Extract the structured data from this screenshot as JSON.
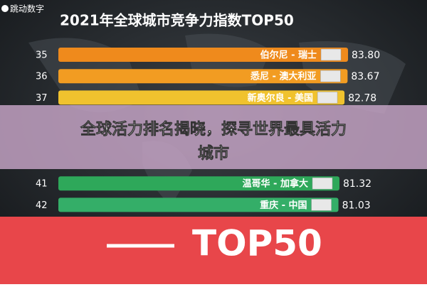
{
  "watermark": "跳动数字",
  "chart_data": {
    "type": "bar",
    "title": "2021年全球城市竞争力指数TOP50",
    "ranks": [
      "35",
      "36",
      "37",
      "41",
      "42"
    ],
    "categories": [
      "伯尔尼 - 瑞士",
      "悉尼 - 澳大利亚",
      "新奥尔良 - 美国",
      "温哥华 - 加拿大",
      "重庆 - 中国"
    ],
    "values": [
      83.8,
      83.67,
      82.78,
      81.32,
      81.03
    ],
    "value_labels": [
      "83.80",
      "83.67",
      "82.78",
      "81.32",
      "81.03"
    ],
    "colors": [
      "#ef8a1c",
      "#f29c22",
      "#f0c22e",
      "#2ea85a",
      "#34ae68"
    ]
  },
  "overlay": {
    "headline": [
      "全球活力排名揭晓，探寻世界最具活力",
      "城市"
    ]
  },
  "banner": {
    "text": "TOP50"
  }
}
